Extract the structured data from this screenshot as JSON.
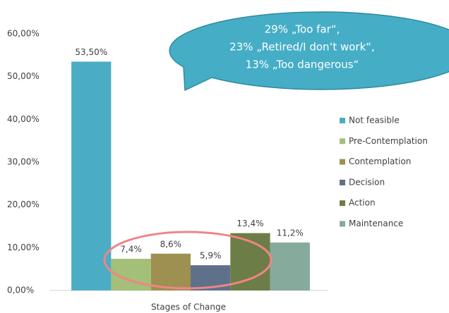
{
  "chart_data": {
    "type": "bar",
    "categories": [
      "Stages of Change"
    ],
    "series": [
      {
        "name": "Not feasible",
        "color": "#4bacc6",
        "values": [
          53.5
        ],
        "value_labels": [
          "53,50%"
        ]
      },
      {
        "name": "Pre-Contemplation",
        "color": "#a3bf78",
        "values": [
          7.4
        ],
        "value_labels": [
          "7,4%"
        ]
      },
      {
        "name": "Contemplation",
        "color": "#9e9050",
        "values": [
          8.6
        ],
        "value_labels": [
          "8,6%"
        ]
      },
      {
        "name": "Decision",
        "color": "#5f718a",
        "values": [
          5.9
        ],
        "value_labels": [
          "5,9%"
        ]
      },
      {
        "name": "Action",
        "color": "#6c7d47",
        "values": [
          13.4
        ],
        "value_labels": [
          "13,4%"
        ]
      },
      {
        "name": "Maintenance",
        "color": "#86aa9c",
        "values": [
          11.2
        ],
        "value_labels": [
          "11,2%"
        ]
      }
    ],
    "ylim": [
      0,
      60
    ],
    "yticks": [
      {
        "value": 0,
        "label": "0,00%"
      },
      {
        "value": 10,
        "label": "10,00%"
      },
      {
        "value": 20,
        "label": "20,00%"
      },
      {
        "value": 30,
        "label": "30,00%"
      },
      {
        "value": 40,
        "label": "40,00%"
      },
      {
        "value": 50,
        "label": "50,00%"
      },
      {
        "value": 60,
        "label": "60,00%"
      }
    ],
    "legend": "right",
    "annotation": [
      "29% „Too far“,",
      "23% „Retired/I don‘t work“,",
      "13% „Too dangerous“"
    ]
  }
}
